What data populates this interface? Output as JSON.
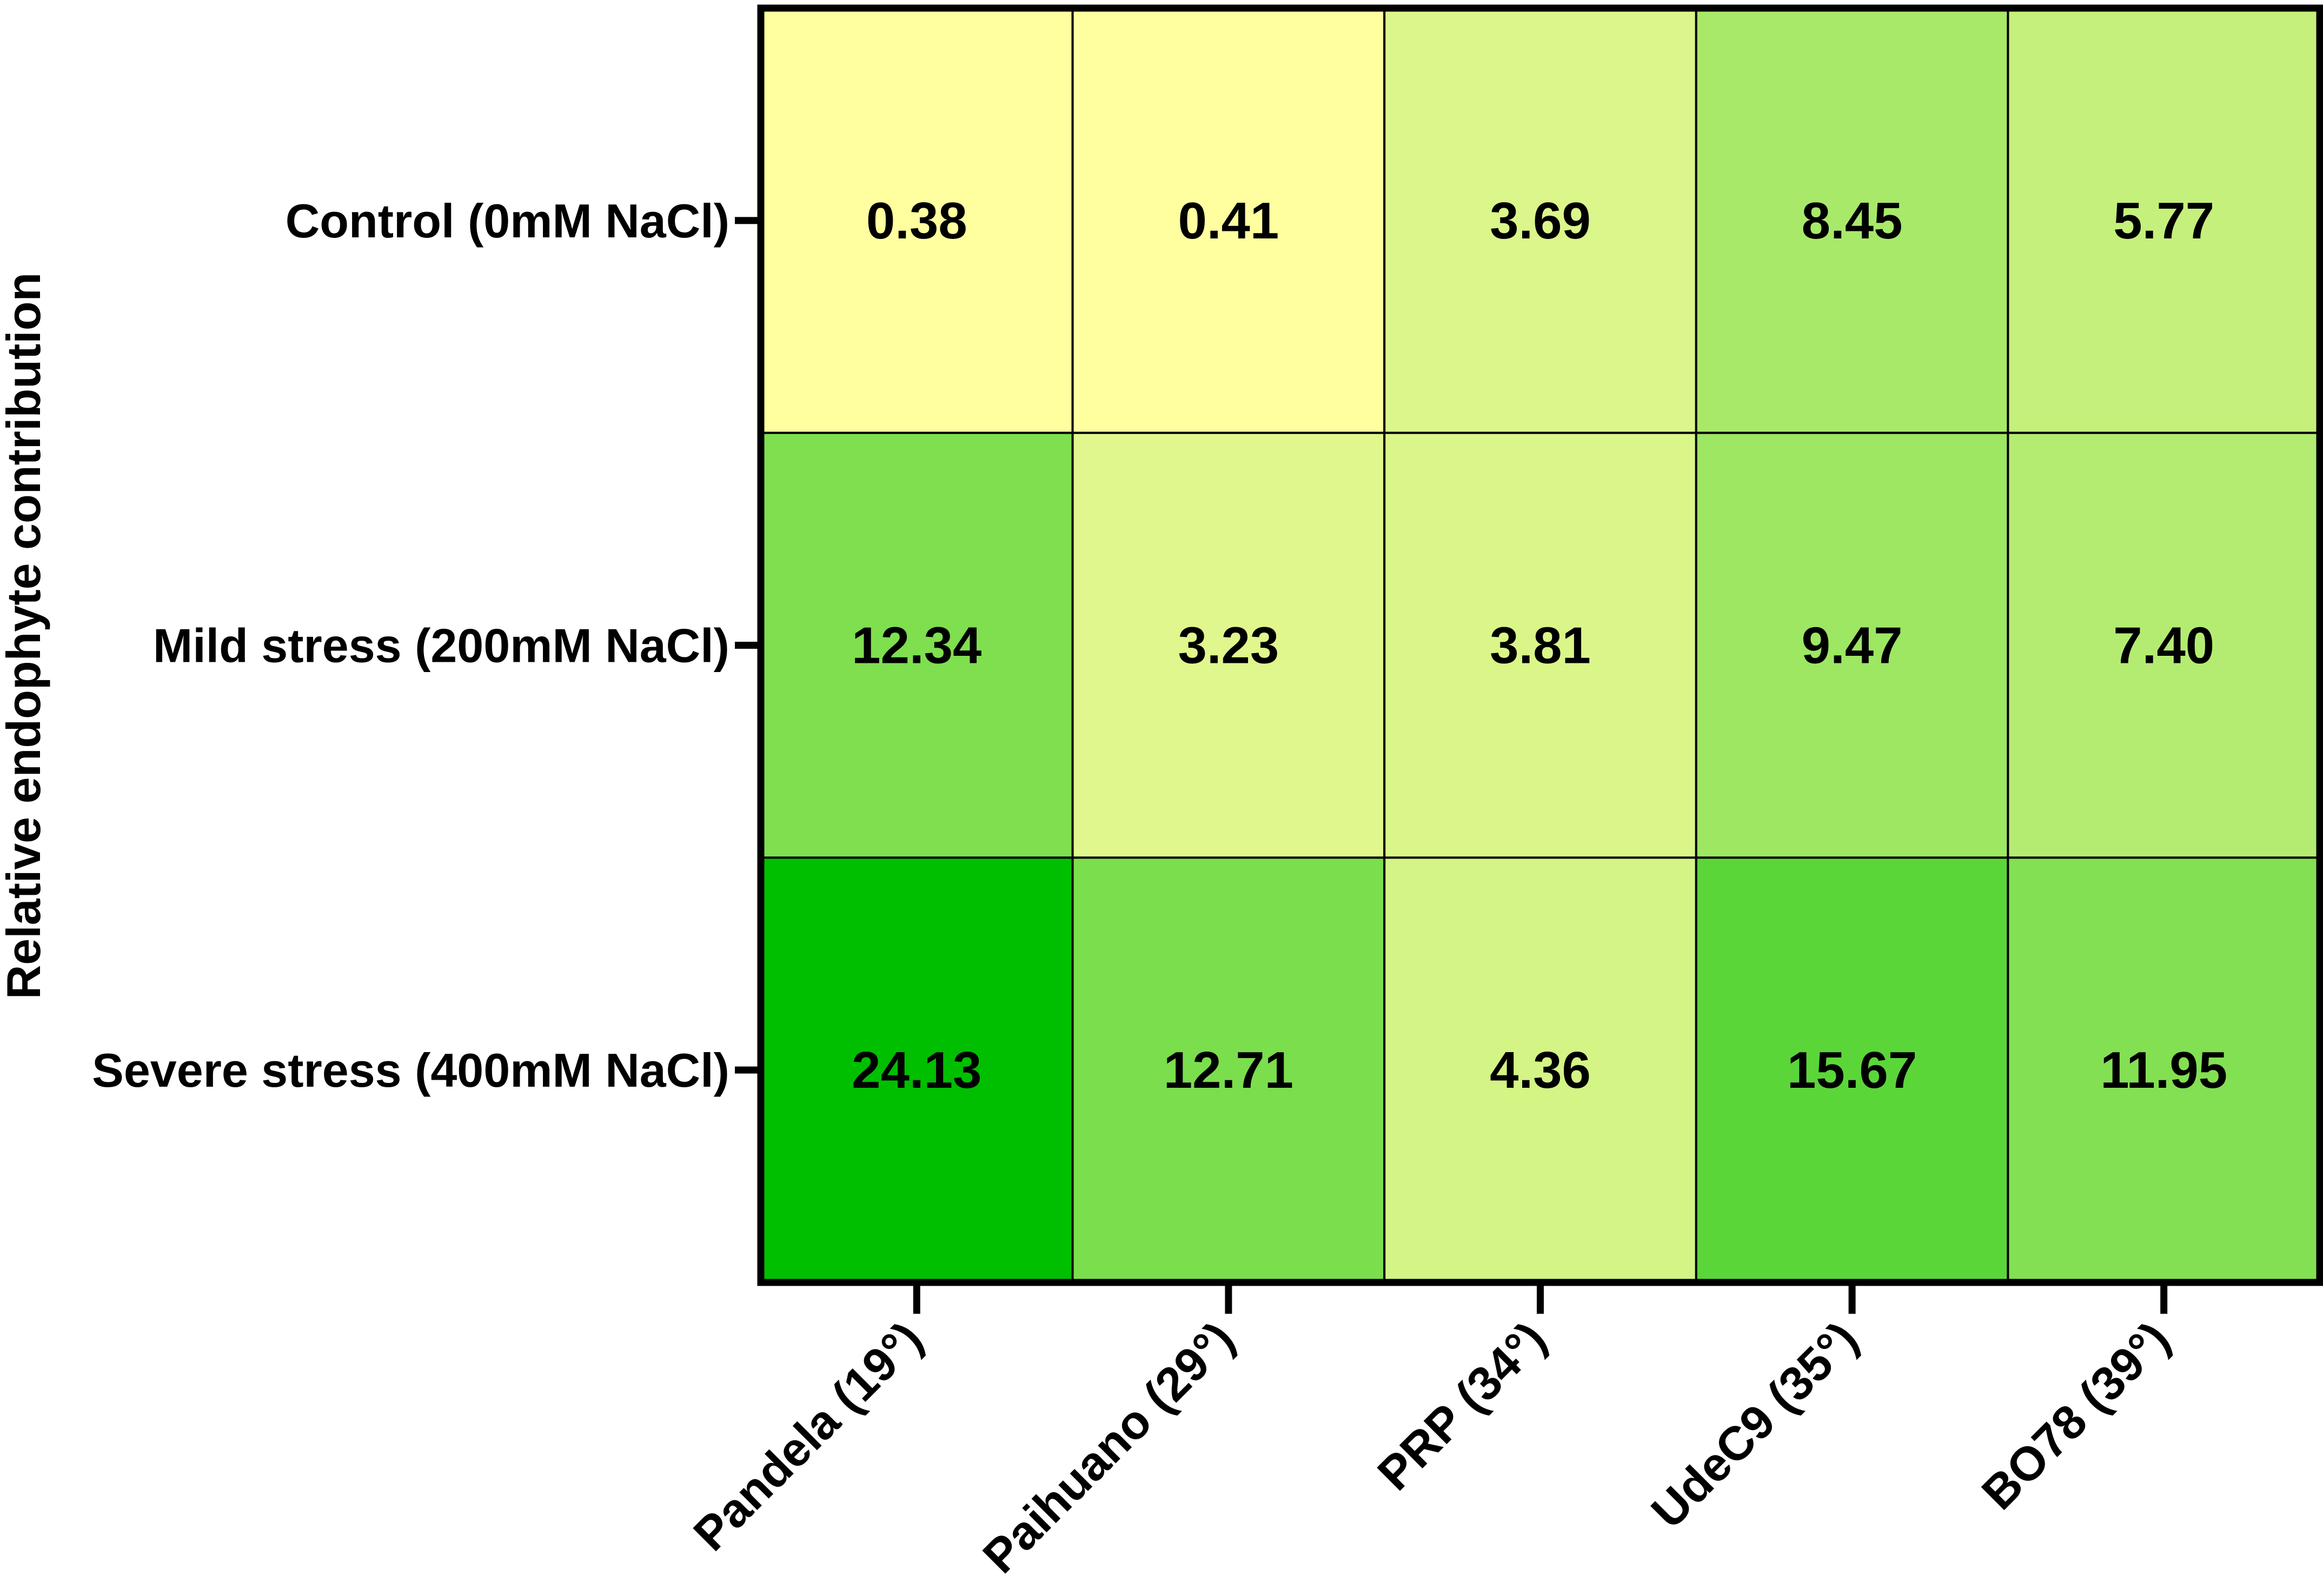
{
  "chart_data": {
    "type": "heatmap",
    "title": "",
    "xlabel": "",
    "ylabel": "Relative endophyte contribution",
    "columns": [
      "Pandela (19°)",
      "Paihuano (29°)",
      "PRP (34°)",
      "UdeC9 (35°)",
      "BO78 (39°)"
    ],
    "rows": [
      "Control (0mM NaCl)",
      "Mild stress (200mM NaCl)",
      "Severe stress (400mM NaCl)"
    ],
    "values": [
      [
        "0.38",
        "0.41",
        "3.69",
        "8.45",
        "5.77"
      ],
      [
        "12.34",
        "3.23",
        "3.81",
        "9.47",
        "7.40"
      ],
      [
        "24.13",
        "12.71",
        "4.36",
        "15.67",
        "11.95"
      ]
    ],
    "color_scale": {
      "low": "#ffffa0",
      "high": "#00bf00"
    },
    "grid": true,
    "legend": "none"
  }
}
